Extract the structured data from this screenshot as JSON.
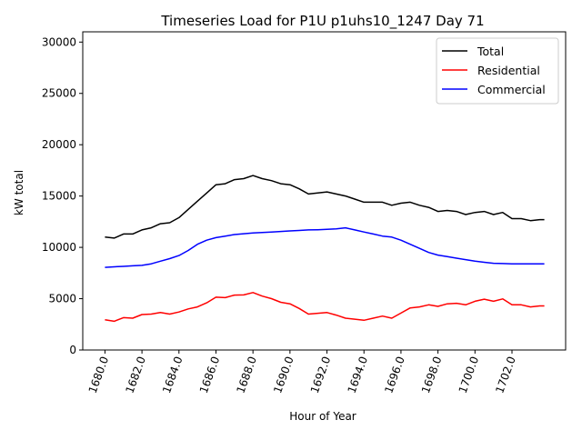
{
  "chart_data": {
    "type": "line",
    "title": "Timeseries Load for P1U p1uhs10_1247  Day 71",
    "xlabel": "Hour of Year",
    "ylabel": "kW total",
    "xlim": [
      1678.8,
      1704.9
    ],
    "ylim": [
      0,
      31000
    ],
    "xticks": [
      "1680.0",
      "1682.0",
      "1684.0",
      "1686.0",
      "1688.0",
      "1690.0",
      "1692.0",
      "1694.0",
      "1696.0",
      "1698.0",
      "1700.0",
      "1702.0"
    ],
    "xtick_values": [
      1680,
      1682,
      1684,
      1686,
      1688,
      1690,
      1692,
      1694,
      1696,
      1698,
      1700,
      1702
    ],
    "yticks": [
      "0",
      "5000",
      "10000",
      "15000",
      "20000",
      "25000",
      "30000"
    ],
    "ytick_values": [
      0,
      5000,
      10000,
      15000,
      20000,
      25000,
      30000
    ],
    "legend_position": "top-right",
    "grid": false,
    "x": [
      1680,
      1680.5,
      1681,
      1681.5,
      1682,
      1682.5,
      1683,
      1683.5,
      1684,
      1684.5,
      1685,
      1685.5,
      1686,
      1686.5,
      1687,
      1687.5,
      1688,
      1688.5,
      1689,
      1689.5,
      1690,
      1690.5,
      1691,
      1691.5,
      1692,
      1692.5,
      1693,
      1693.5,
      1694,
      1694.5,
      1695,
      1695.5,
      1696,
      1696.5,
      1697,
      1697.5,
      1698,
      1698.5,
      1699,
      1699.5,
      1700,
      1700.5,
      1701,
      1701.5,
      1702,
      1702.5,
      1703,
      1703.5,
      1703.75
    ],
    "series": [
      {
        "name": "Total",
        "color": "#000000",
        "values": [
          11000,
          10900,
          11300,
          11300,
          11700,
          11900,
          12300,
          12400,
          12900,
          13700,
          14500,
          15300,
          16100,
          16200,
          16600,
          16700,
          17000,
          16700,
          16500,
          16200,
          16100,
          15700,
          15200,
          15300,
          15400,
          15200,
          15000,
          14700,
          14400,
          14400,
          14400,
          14100,
          14300,
          14400,
          14100,
          13900,
          13500,
          13600,
          13500,
          13200,
          13400,
          13500,
          13200,
          13400,
          12800,
          12800,
          12600,
          12700,
          12700
        ]
      },
      {
        "name": "Residential",
        "color": "#ff0000",
        "values": [
          2950,
          2800,
          3150,
          3100,
          3450,
          3500,
          3650,
          3500,
          3700,
          4000,
          4200,
          4600,
          5150,
          5100,
          5350,
          5370,
          5600,
          5250,
          5000,
          4650,
          4500,
          4050,
          3500,
          3580,
          3650,
          3400,
          3100,
          3000,
          2900,
          3100,
          3300,
          3100,
          3600,
          4100,
          4200,
          4400,
          4250,
          4500,
          4550,
          4400,
          4750,
          4950,
          4750,
          4980,
          4400,
          4400,
          4200,
          4300,
          4300
        ]
      },
      {
        "name": "Commercial",
        "color": "#0000ff",
        "values": [
          8050,
          8100,
          8150,
          8200,
          8250,
          8400,
          8650,
          8900,
          9200,
          9700,
          10300,
          10700,
          10950,
          11100,
          11250,
          11330,
          11400,
          11450,
          11500,
          11550,
          11600,
          11650,
          11700,
          11720,
          11750,
          11800,
          11900,
          11700,
          11500,
          11300,
          11100,
          11000,
          10700,
          10300,
          9900,
          9500,
          9250,
          9100,
          8950,
          8800,
          8650,
          8550,
          8450,
          8420,
          8400,
          8400,
          8400,
          8400,
          8400
        ]
      }
    ]
  }
}
